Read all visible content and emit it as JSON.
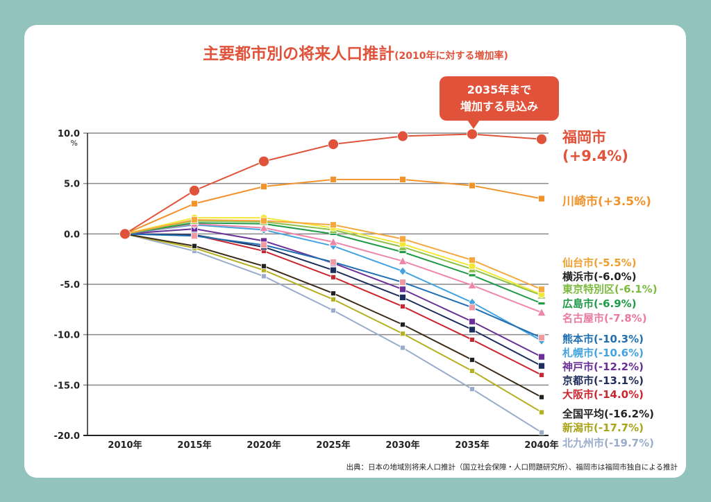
{
  "title": "主要都市別の将来人口推計",
  "subtitle": "(2010年に対する増加率)",
  "callout": {
    "line1": "2035年まで",
    "line2": "増加する見込み"
  },
  "source": "出典：日本の地域別将来人口推計（国立社会保障・人口問題研究所）、福岡市は福岡市独自による推計",
  "chart_data": {
    "type": "line",
    "title": "主要都市別の将来人口推計(2010年に対する増加率)",
    "ylabel_unit": "%",
    "ylim": [
      -20,
      10
    ],
    "yticks": [
      "10.0",
      "5.0",
      "0.0",
      "-5.0",
      "-10.0",
      "-15.0",
      "-20.0"
    ],
    "categories": [
      "2010年",
      "2015年",
      "2020年",
      "2025年",
      "2030年",
      "2035年",
      "2040年"
    ],
    "grid": true,
    "series": [
      {
        "name": "福岡市",
        "label": "(+9.4%)",
        "color": "#e0533a",
        "labelColor": "#e0533a",
        "marker": "circle",
        "values": [
          0,
          4.3,
          7.2,
          8.9,
          9.7,
          9.9,
          9.4
        ]
      },
      {
        "name": "川崎市",
        "label": "(+3.5%)",
        "color": "#f0932b",
        "labelColor": "#f0932b",
        "marker": "square",
        "values": [
          0,
          3.0,
          4.7,
          5.4,
          5.4,
          4.8,
          3.5
        ]
      },
      {
        "name": "仙台市",
        "label": "(-5.5%)",
        "color": "#f5a740",
        "labelColor": "#f0a030",
        "marker": "square",
        "values": [
          0,
          1.4,
          1.3,
          0.9,
          -0.5,
          -2.6,
          -5.5
        ]
      },
      {
        "name": "横浜市",
        "label": "(-6.0%)",
        "color": "#f2e83a",
        "labelColor": "#222222",
        "marker": "circle",
        "values": [
          0,
          1.6,
          1.6,
          0.6,
          -1.0,
          -3.2,
          -6.0
        ]
      },
      {
        "name": "東京特別区",
        "label": "(-6.1%)",
        "color": "#8cc04a",
        "labelColor": "#7cba3f",
        "marker": "triangle",
        "values": [
          0,
          1.3,
          1.2,
          0.4,
          -1.3,
          -3.5,
          -6.1
        ]
      },
      {
        "name": "広島市",
        "label": "(-6.9%)",
        "color": "#1f9a48",
        "labelColor": "#1f9a48",
        "marker": "dash",
        "values": [
          0,
          1.1,
          1.0,
          0.0,
          -1.8,
          -4.1,
          -6.9
        ]
      },
      {
        "name": "名古屋市",
        "label": "(-7.8%)",
        "color": "#ef86a8",
        "labelColor": "#ea7aa0",
        "marker": "triangle",
        "values": [
          0,
          1.0,
          0.6,
          -0.8,
          -2.7,
          -5.1,
          -7.8
        ]
      },
      {
        "name": "熊本市",
        "label": "(-10.3%)",
        "color": "#1f6fb2",
        "labelColor": "#1f6fb2",
        "marker": "square",
        "markerColor": "#ee9aa2",
        "values": [
          0,
          -0.2,
          -1.1,
          -2.8,
          -4.8,
          -7.3,
          -10.3
        ]
      },
      {
        "name": "札幌市",
        "label": "(-10.6%)",
        "color": "#43a3e0",
        "labelColor": "#43a3e0",
        "marker": "diamond",
        "values": [
          0,
          0.9,
          0.4,
          -1.2,
          -3.7,
          -6.8,
          -10.6
        ]
      },
      {
        "name": "神戸市",
        "label": "(-12.2%)",
        "color": "#6a3096",
        "labelColor": "#6a3096",
        "marker": "square",
        "values": [
          0,
          0.5,
          -0.7,
          -2.9,
          -5.5,
          -8.7,
          -12.2
        ]
      },
      {
        "name": "京都市",
        "label": "(-13.1%)",
        "color": "#1d2d5c",
        "labelColor": "#1d2d5c",
        "marker": "square",
        "values": [
          0,
          -0.1,
          -1.3,
          -3.6,
          -6.3,
          -9.5,
          -13.1
        ]
      },
      {
        "name": "大阪市",
        "label": "(-14.0%)",
        "color": "#c9262f",
        "labelColor": "#c9262f",
        "marker": "square",
        "values": [
          0,
          -0.1,
          -1.7,
          -4.3,
          -7.2,
          -10.5,
          -14.0
        ]
      },
      {
        "name": "全国平均",
        "label": "(-16.2%)",
        "color": "#3a2a1a",
        "labelColor": "#222222",
        "marker": "square",
        "markerColor": "#222222",
        "values": [
          0,
          -1.2,
          -3.2,
          -5.9,
          -9.0,
          -12.5,
          -16.2
        ]
      },
      {
        "name": "新潟市",
        "label": "(-17.7%)",
        "color": "#b5b020",
        "labelColor": "#a8a418",
        "marker": "square",
        "values": [
          0,
          -1.4,
          -3.6,
          -6.5,
          -9.9,
          -13.6,
          -17.7
        ]
      },
      {
        "name": "北九州市",
        "label": "(-19.7%)",
        "color": "#9aaccb",
        "labelColor": "#9aaccb",
        "marker": "square",
        "values": [
          0,
          -1.7,
          -4.2,
          -7.6,
          -11.3,
          -15.4,
          -19.7
        ]
      }
    ]
  }
}
